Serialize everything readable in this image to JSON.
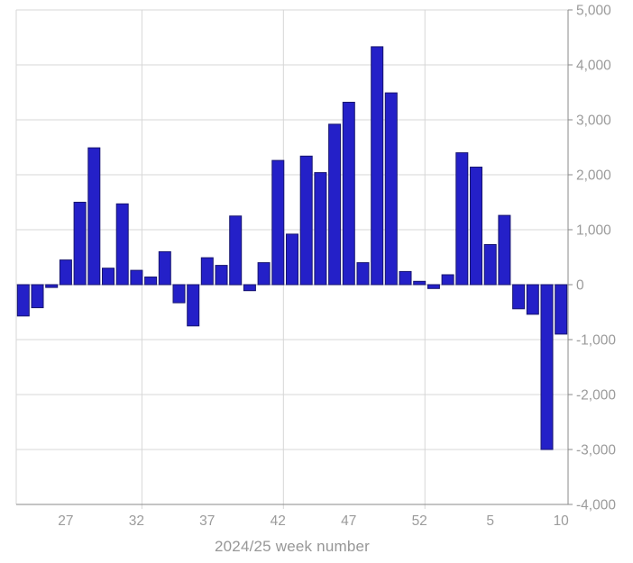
{
  "chart_data": {
    "type": "bar",
    "title": "",
    "xlabel": "2024/25 week number",
    "ylabel": "",
    "categories": [
      "24",
      "25",
      "26",
      "27",
      "28",
      "29",
      "30",
      "31",
      "32",
      "33",
      "34",
      "35",
      "36",
      "37",
      "38",
      "39",
      "40",
      "41",
      "42",
      "43",
      "44",
      "45",
      "46",
      "47",
      "48",
      "49",
      "50",
      "51",
      "52",
      "1",
      "2",
      "3",
      "4",
      "5",
      "6",
      "7",
      "8",
      "9",
      "10"
    ],
    "values": [
      -570,
      -420,
      -50,
      450,
      1500,
      2490,
      300,
      1470,
      260,
      140,
      600,
      -330,
      -750,
      490,
      350,
      1250,
      -110,
      400,
      2260,
      920,
      2340,
      2040,
      2920,
      3320,
      400,
      4330,
      3490,
      240,
      60,
      -70,
      180,
      2400,
      2140,
      730,
      1260,
      -440,
      -540,
      -3000,
      -900
    ],
    "x_tick_labels": [
      "27",
      "32",
      "37",
      "42",
      "47",
      "52",
      "5",
      "10"
    ],
    "y_tick_values": [
      5000,
      4000,
      3000,
      2000,
      1000,
      0,
      -1000,
      -2000,
      -3000,
      -4000
    ],
    "y_tick_labels": [
      "5,000",
      "4,000",
      "3,000",
      "2,000",
      "1,000",
      "0",
      "-1,000",
      "-2,000",
      "-3,000",
      "-4,000"
    ],
    "ylim": [
      -4000,
      5000
    ],
    "grid": true,
    "legend": "none",
    "y_axis_side": "right",
    "vertical_gridline_weeks": [
      "32",
      "42",
      "52"
    ],
    "colors": {
      "bar_fill": "#2420c8",
      "bar_stroke": "#17156f",
      "gridline": "#d7d7d7",
      "zero_line": "#bdbdbd",
      "axis_line": "#8a8a8a",
      "tick_label": "#9b9b9b",
      "axis_title": "#979797",
      "background": "#ffffff"
    }
  }
}
